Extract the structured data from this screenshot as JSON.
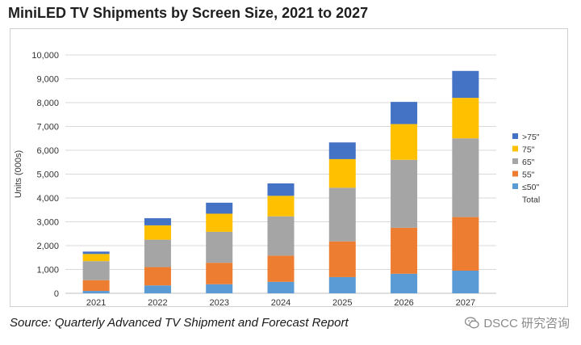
{
  "page": {
    "title": "MiniLED TV Shipments by Screen Size, 2021 to 2027",
    "source": "Source: Quarterly Advanced TV Shipment and Forecast Report",
    "watermark": "DSCC 研究咨询"
  },
  "chart_data": {
    "type": "bar",
    "stacked": true,
    "title": "MiniLED TV Shipments by Screen Size, 2021 to 2027",
    "xlabel": "",
    "ylabel": "Units (000s)",
    "ylim": [
      0,
      10000
    ],
    "yticks": [
      0,
      1000,
      2000,
      3000,
      4000,
      5000,
      6000,
      7000,
      8000,
      9000,
      10000
    ],
    "ytick_labels": [
      "0",
      "1,000",
      "2,000",
      "3,000",
      "4,000",
      "5,000",
      "6,000",
      "7,000",
      "8,000",
      "9,000",
      "10,000"
    ],
    "grid": true,
    "legend_position": "right",
    "categories": [
      "2021",
      "2022",
      "2023",
      "2024",
      "2025",
      "2026",
      "2027"
    ],
    "series": [
      {
        "name": "≤50\"",
        "color": "#5b9bd5",
        "values": [
          100,
          330,
          380,
          480,
          680,
          820,
          950
        ]
      },
      {
        "name": "55\"",
        "color": "#ed7d31",
        "values": [
          450,
          770,
          900,
          1100,
          1500,
          1930,
          2250
        ]
      },
      {
        "name": "65\"",
        "color": "#a5a5a5",
        "values": [
          800,
          1150,
          1300,
          1650,
          2250,
          2850,
          3300
        ]
      },
      {
        "name": "75\"",
        "color": "#ffc000",
        "values": [
          300,
          600,
          760,
          860,
          1200,
          1500,
          1700
        ]
      },
      {
        "name": ">75\"",
        "color": "#4472c4",
        "values": [
          100,
          300,
          460,
          520,
          700,
          930,
          1130
        ]
      }
    ],
    "legend_order": [
      ">75\"",
      "75\"",
      "65\"",
      "55\"",
      "≤50\"",
      "Total"
    ],
    "legend_extra": "Total"
  }
}
